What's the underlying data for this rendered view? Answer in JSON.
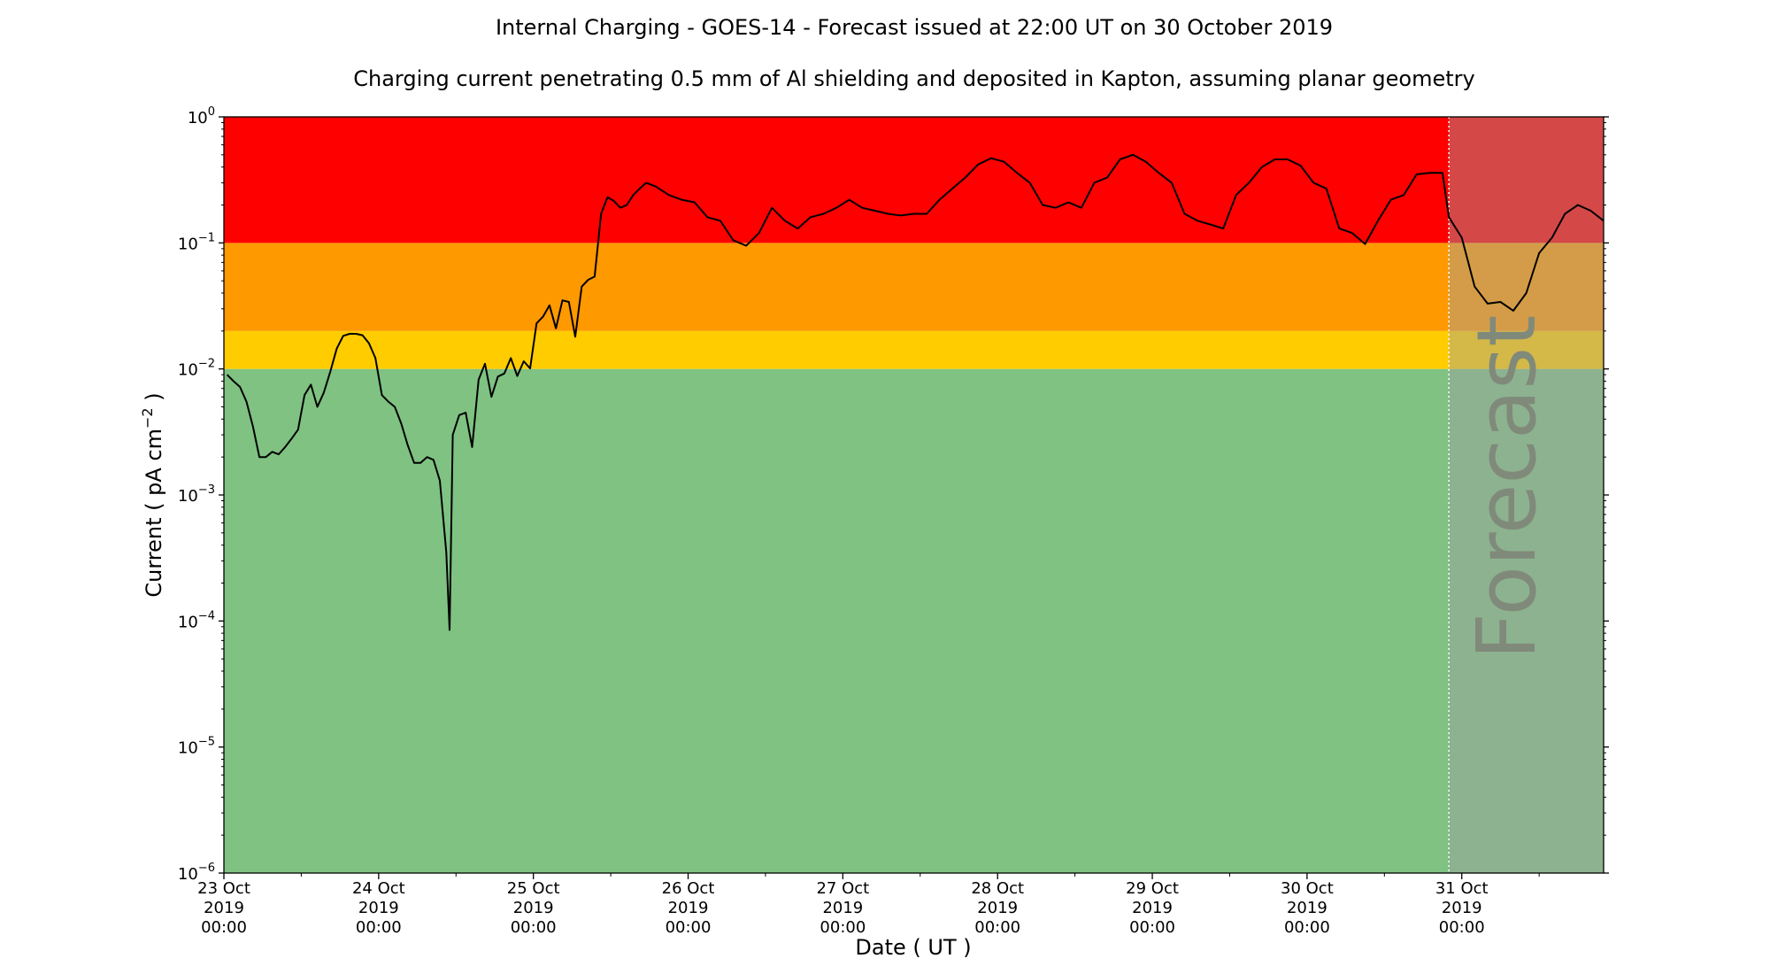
{
  "chart_data": {
    "type": "line",
    "title": "Internal Charging - GOES-14 - Forecast issued at 22:00 UT on 30 October 2019",
    "subtitle": "Charging current penetrating 0.5 mm of Al shielding and deposited in Kapton, assuming planar geometry",
    "xlabel": "Date ( UT )",
    "ylabel": "Current ( pA cm",
    "ylabel_sup": "−2",
    "ylabel_close": " )",
    "yscale": "log",
    "ylim": [
      1e-06,
      1
    ],
    "xlim": [
      "2019-10-23T00:00",
      "2019-10-31T22:00"
    ],
    "y_ticks": [
      {
        "value": 1e-06,
        "base": "10",
        "exp": "−6"
      },
      {
        "value": 1e-05,
        "base": "10",
        "exp": "−5"
      },
      {
        "value": 0.0001,
        "base": "10",
        "exp": "−4"
      },
      {
        "value": 0.001,
        "base": "10",
        "exp": "−3"
      },
      {
        "value": 0.01,
        "base": "10",
        "exp": "−2"
      },
      {
        "value": 0.1,
        "base": "10",
        "exp": "−1"
      },
      {
        "value": 1,
        "base": "10",
        "exp": "0"
      }
    ],
    "x_ticks": [
      {
        "x": "2019-10-23T00:00",
        "lines": [
          "23 Oct",
          "2019",
          "00:00"
        ]
      },
      {
        "x": "2019-10-24T00:00",
        "lines": [
          "24 Oct",
          "2019",
          "00:00"
        ]
      },
      {
        "x": "2019-10-25T00:00",
        "lines": [
          "25 Oct",
          "2019",
          "00:00"
        ]
      },
      {
        "x": "2019-10-26T00:00",
        "lines": [
          "26 Oct",
          "2019",
          "00:00"
        ]
      },
      {
        "x": "2019-10-27T00:00",
        "lines": [
          "27 Oct",
          "2019",
          "00:00"
        ]
      },
      {
        "x": "2019-10-28T00:00",
        "lines": [
          "28 Oct",
          "2019",
          "00:00"
        ]
      },
      {
        "x": "2019-10-29T00:00",
        "lines": [
          "29 Oct",
          "2019",
          "00:00"
        ]
      },
      {
        "x": "2019-10-30T00:00",
        "lines": [
          "30 Oct",
          "2019",
          "00:00"
        ]
      },
      {
        "x": "2019-10-31T00:00",
        "lines": [
          "31 Oct",
          "2019",
          "00:00"
        ]
      }
    ],
    "bands": [
      {
        "from": 1e-06,
        "to": 0.01,
        "color": "#7fc282"
      },
      {
        "from": 0.01,
        "to": 0.02,
        "color": "#ffcc00"
      },
      {
        "from": 0.02,
        "to": 0.1,
        "color": "#ff9900"
      },
      {
        "from": 0.1,
        "to": 1,
        "color": "#ff0000"
      }
    ],
    "forecast_start": "2019-10-30T22:00",
    "forecast_label": "Forecast",
    "forecast_overlay_color": "#a0a0a0",
    "line_color": "#000000",
    "series": [
      {
        "x": [
          "2019-10-23T00:30",
          "2019-10-23T01:30",
          "2019-10-23T02:30",
          "2019-10-23T03:30",
          "2019-10-23T04:30",
          "2019-10-23T05:30",
          "2019-10-23T06:30",
          "2019-10-23T07:30",
          "2019-10-23T08:30",
          "2019-10-23T09:30",
          "2019-10-23T10:30",
          "2019-10-23T11:30",
          "2019-10-23T12:30",
          "2019-10-23T13:30",
          "2019-10-23T14:30",
          "2019-10-23T15:30",
          "2019-10-23T16:30",
          "2019-10-23T17:30",
          "2019-10-23T18:30",
          "2019-10-23T19:30",
          "2019-10-23T20:30",
          "2019-10-23T21:30",
          "2019-10-23T22:30",
          "2019-10-23T23:30",
          "2019-10-24T00:30",
          "2019-10-24T01:30",
          "2019-10-24T02:30",
          "2019-10-24T03:30",
          "2019-10-24T04:30",
          "2019-10-24T05:30",
          "2019-10-24T06:30",
          "2019-10-24T07:30",
          "2019-10-24T08:30",
          "2019-10-24T09:30",
          "2019-10-24T10:30",
          "2019-10-24T11:00",
          "2019-10-24T11:30",
          "2019-10-24T12:30",
          "2019-10-24T13:30",
          "2019-10-24T14:30",
          "2019-10-24T15:30",
          "2019-10-24T16:30",
          "2019-10-24T17:30",
          "2019-10-24T18:30",
          "2019-10-24T19:30",
          "2019-10-24T20:30",
          "2019-10-24T21:30",
          "2019-10-24T22:30",
          "2019-10-24T23:30",
          "2019-10-25T00:30",
          "2019-10-25T01:30",
          "2019-10-25T02:30",
          "2019-10-25T03:30",
          "2019-10-25T04:30",
          "2019-10-25T05:30",
          "2019-10-25T06:30",
          "2019-10-25T07:30",
          "2019-10-25T08:30",
          "2019-10-25T09:30",
          "2019-10-25T10:30",
          "2019-10-25T11:30",
          "2019-10-25T12:30",
          "2019-10-25T13:30",
          "2019-10-25T14:30",
          "2019-10-25T15:30",
          "2019-10-25T16:30",
          "2019-10-25T17:30",
          "2019-10-25T19:00",
          "2019-10-25T21:00",
          "2019-10-25T23:00",
          "2019-10-26T01:00",
          "2019-10-26T03:00",
          "2019-10-26T05:00",
          "2019-10-26T07:00",
          "2019-10-26T09:00",
          "2019-10-26T11:00",
          "2019-10-26T13:00",
          "2019-10-26T15:00",
          "2019-10-26T17:00",
          "2019-10-26T19:00",
          "2019-10-26T21:00",
          "2019-10-26T23:00",
          "2019-10-27T01:00",
          "2019-10-27T03:00",
          "2019-10-27T05:00",
          "2019-10-27T07:00",
          "2019-10-27T09:00",
          "2019-10-27T11:00",
          "2019-10-27T13:00",
          "2019-10-27T15:00",
          "2019-10-27T17:00",
          "2019-10-27T19:00",
          "2019-10-27T21:00",
          "2019-10-27T23:00",
          "2019-10-28T01:00",
          "2019-10-28T03:00",
          "2019-10-28T05:00",
          "2019-10-28T07:00",
          "2019-10-28T09:00",
          "2019-10-28T11:00",
          "2019-10-28T13:00",
          "2019-10-28T15:00",
          "2019-10-28T17:00",
          "2019-10-28T19:00",
          "2019-10-28T21:00",
          "2019-10-28T23:00",
          "2019-10-29T01:00",
          "2019-10-29T03:00",
          "2019-10-29T05:00",
          "2019-10-29T07:00",
          "2019-10-29T09:00",
          "2019-10-29T11:00",
          "2019-10-29T13:00",
          "2019-10-29T15:00",
          "2019-10-29T17:00",
          "2019-10-29T19:00",
          "2019-10-29T21:00",
          "2019-10-29T23:00",
          "2019-10-30T01:00",
          "2019-10-30T03:00",
          "2019-10-30T05:00",
          "2019-10-30T07:00",
          "2019-10-30T09:00",
          "2019-10-30T11:00",
          "2019-10-30T13:00",
          "2019-10-30T15:00",
          "2019-10-30T17:00",
          "2019-10-30T19:00",
          "2019-10-30T21:00",
          "2019-10-30T22:00",
          "2019-10-31T00:00",
          "2019-10-31T02:00",
          "2019-10-31T04:00",
          "2019-10-31T06:00",
          "2019-10-31T08:00",
          "2019-10-31T10:00",
          "2019-10-31T12:00",
          "2019-10-31T14:00",
          "2019-10-31T16:00",
          "2019-10-31T18:00",
          "2019-10-31T20:00",
          "2019-10-31T22:00"
        ],
        "y": [
          0.009,
          0.008,
          0.0072,
          0.0055,
          0.0035,
          0.002,
          0.002,
          0.0022,
          0.0021,
          0.0024,
          0.0028,
          0.0033,
          0.0062,
          0.0075,
          0.005,
          0.0065,
          0.0095,
          0.0145,
          0.0183,
          0.019,
          0.019,
          0.0185,
          0.016,
          0.0122,
          0.0062,
          0.0055,
          0.005,
          0.0037,
          0.0025,
          0.0018,
          0.0018,
          0.002,
          0.0019,
          0.0013,
          0.00035,
          8.5e-05,
          0.003,
          0.0043,
          0.0045,
          0.0024,
          0.0082,
          0.011,
          0.006,
          0.0087,
          0.0092,
          0.0122,
          0.0088,
          0.0115,
          0.0101,
          0.023,
          0.026,
          0.032,
          0.021,
          0.035,
          0.034,
          0.018,
          0.045,
          0.051,
          0.054,
          0.17,
          0.23,
          0.215,
          0.19,
          0.2,
          0.24,
          0.27,
          0.3,
          0.28,
          0.24,
          0.22,
          0.21,
          0.16,
          0.15,
          0.105,
          0.095,
          0.12,
          0.19,
          0.15,
          0.13,
          0.16,
          0.17,
          0.19,
          0.22,
          0.19,
          0.18,
          0.17,
          0.165,
          0.17,
          0.17,
          0.22,
          0.27,
          0.33,
          0.42,
          0.47,
          0.44,
          0.36,
          0.3,
          0.2,
          0.19,
          0.21,
          0.19,
          0.3,
          0.33,
          0.46,
          0.5,
          0.44,
          0.36,
          0.3,
          0.17,
          0.15,
          0.14,
          0.13,
          0.24,
          0.3,
          0.4,
          0.46,
          0.46,
          0.41,
          0.3,
          0.27,
          0.13,
          0.12,
          0.098,
          0.15,
          0.22,
          0.24,
          0.35,
          0.36,
          0.36,
          0.16,
          0.11,
          0.045,
          0.033,
          0.034,
          0.029,
          0.04,
          0.083,
          0.11,
          0.17,
          0.2,
          0.18,
          0.15
        ]
      }
    ]
  }
}
